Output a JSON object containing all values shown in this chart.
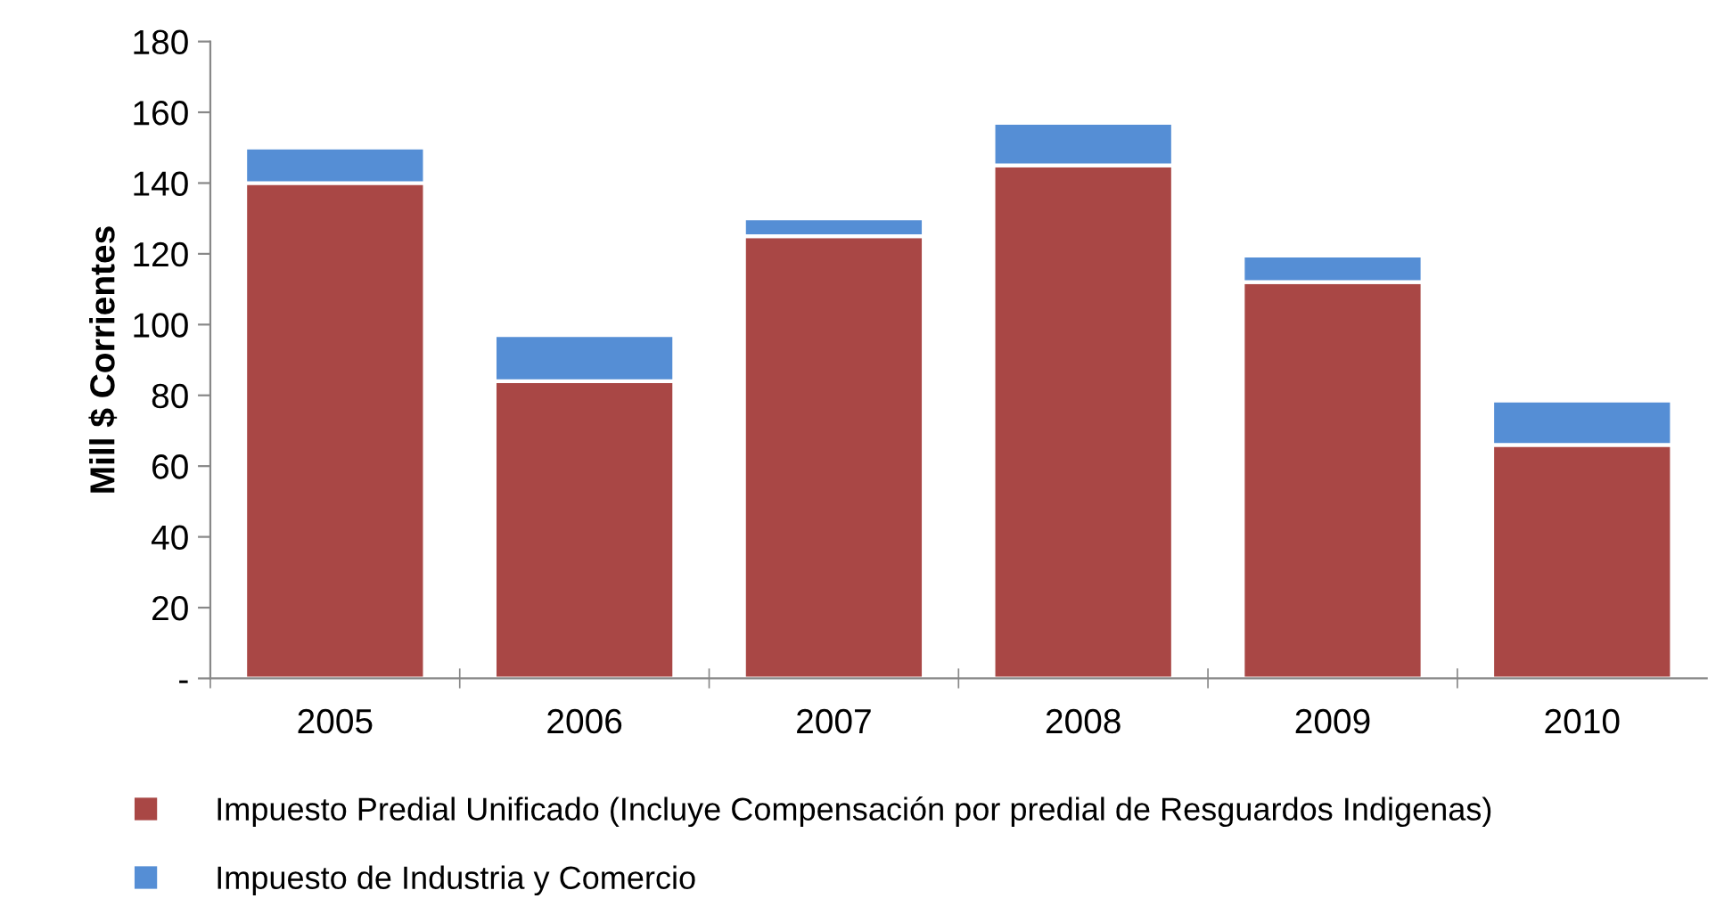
{
  "chart_data": {
    "type": "bar",
    "stacked": true,
    "ylabel": "Mill $ Corrientes",
    "categories": [
      "2005",
      "2006",
      "2007",
      "2008",
      "2009",
      "2010"
    ],
    "series": [
      {
        "name": "Impuesto Predial Unificado (Incluye Compensación por predial de Resguardos Indigenas)",
        "color": "#a94745",
        "values": [
          140,
          84,
          125,
          145,
          112,
          66
        ]
      },
      {
        "name": "Impuesto de Industria y Comercio",
        "color": "#558ed5",
        "values": [
          10,
          13,
          5,
          12,
          7.5,
          12.5
        ]
      }
    ],
    "ylim": [
      0,
      180
    ],
    "yticks": [
      {
        "value": 0,
        "label": "-"
      },
      20,
      40,
      60,
      80,
      100,
      120,
      140,
      160,
      180
    ],
    "grid": false,
    "legend": "bottom"
  }
}
